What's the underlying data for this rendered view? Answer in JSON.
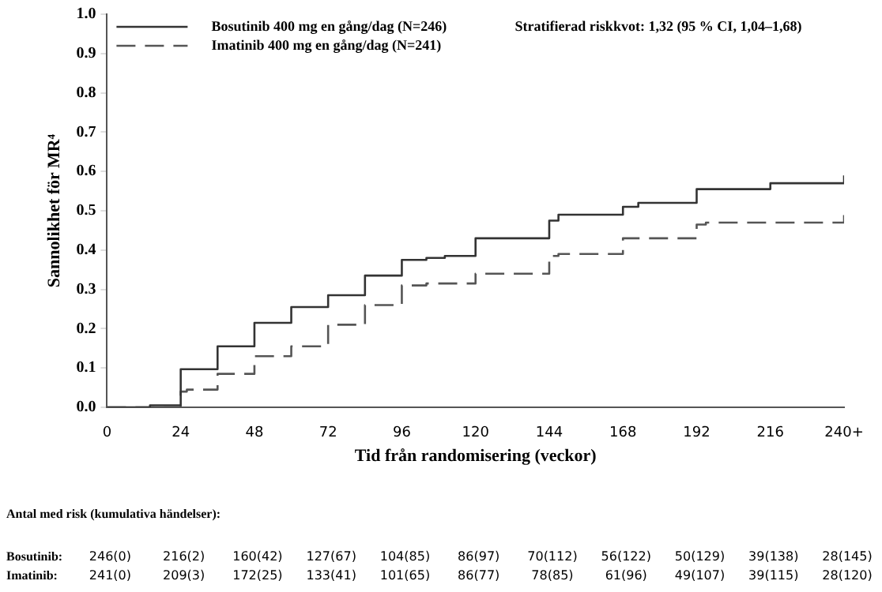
{
  "chart_data": {
    "type": "step",
    "xlabel": "Tid från randomisering (veckor)",
    "ylabel": "Sannolikhet för MR⁴",
    "xlim": [
      0,
      240
    ],
    "xticks": [
      0,
      24,
      48,
      72,
      96,
      120,
      144,
      168,
      192,
      216,
      {
        "value": 240,
        "label": "240+"
      }
    ],
    "ylim": [
      0,
      1
    ],
    "yticks": [
      {
        "value": 0,
        "label": "0.0"
      },
      0.1,
      0.2,
      0.3,
      0.4,
      0.5,
      0.6,
      0.7,
      0.8,
      0.9,
      {
        "value": 1,
        "label": "1.0"
      }
    ],
    "grid": false,
    "legend": "top left",
    "marker": "none",
    "series": [
      {
        "name": "Bosutinib 400 mg en gång/dag (N=246)",
        "color": "#333333",
        "line_style": "solid",
        "x": [
          0,
          14,
          24,
          36,
          48,
          60,
          72,
          84,
          96,
          104,
          110,
          120,
          144,
          147,
          168,
          173,
          192,
          216,
          240
        ],
        "values": [
          0,
          0.005,
          0.097,
          0.155,
          0.215,
          0.255,
          0.285,
          0.335,
          0.375,
          0.38,
          0.385,
          0.43,
          0.475,
          0.49,
          0.51,
          0.52,
          0.555,
          0.57,
          0.59
        ]
      },
      {
        "name": "Imatinib 400 mg en gång/dag (N=241)",
        "color": "#555555",
        "line_style": "dashed",
        "x": [
          0,
          24,
          26,
          36,
          48,
          60,
          72,
          84,
          96,
          104,
          120,
          144,
          147,
          168,
          192,
          195,
          240
        ],
        "values": [
          0,
          0.04,
          0.045,
          0.085,
          0.13,
          0.155,
          0.21,
          0.26,
          0.31,
          0.315,
          0.34,
          0.385,
          0.39,
          0.43,
          0.465,
          0.47,
          0.49
        ]
      }
    ],
    "annotations": [
      "Stratifierad riskkvot: 1,32 (95 % CI, 1,04–1,68)",
      "Antal med risk (kumulativa händelser):",
      "Bosutinib:",
      "246(0)",
      "216(2)",
      "160(42)",
      "127(67)",
      "104(85)",
      "86(97)",
      "70(112)",
      "56(122)",
      "50(129)",
      "39(138)",
      "28(145)",
      "Imatinib:",
      "241(0)",
      "209(3)",
      "172(25)",
      "133(41)",
      "101(65)",
      "86(77)",
      "78(85)",
      "61(96)",
      "49(107)",
      "39(115)",
      "28(120)"
    ]
  }
}
